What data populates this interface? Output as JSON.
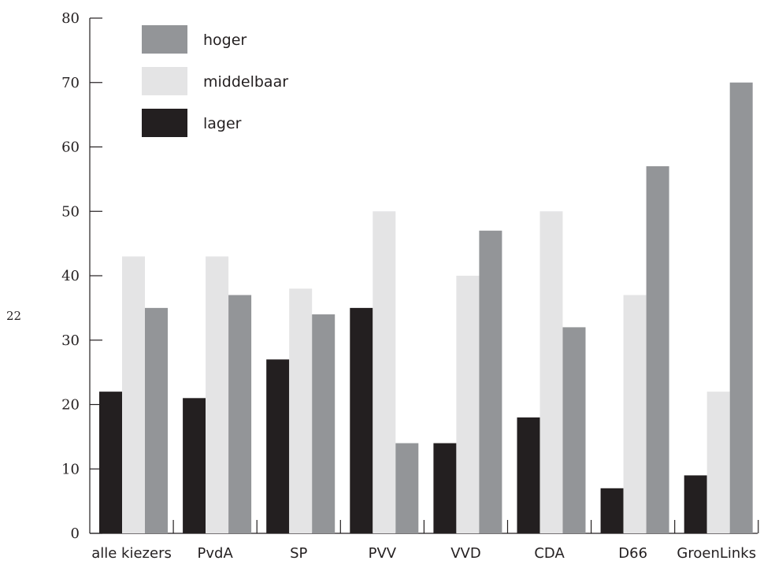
{
  "page_number": "22",
  "chart_data": {
    "type": "bar",
    "title": "",
    "xlabel": "",
    "ylabel": "",
    "ylim": [
      0,
      80
    ],
    "yticks": [
      0,
      10,
      20,
      30,
      40,
      50,
      60,
      70,
      80
    ],
    "categories": [
      "alle kiezers",
      "PvdA",
      "SP",
      "PVV",
      "VVD",
      "CDA",
      "D66",
      "GroenLinks"
    ],
    "series": [
      {
        "name": "lager",
        "color": "#231f20",
        "values": [
          22,
          21,
          27,
          35,
          14,
          18,
          7,
          9
        ]
      },
      {
        "name": "middelbaar",
        "color": "#e4e4e5",
        "values": [
          43,
          43,
          38,
          50,
          40,
          50,
          37,
          22
        ]
      },
      {
        "name": "hoger",
        "color": "#939598",
        "values": [
          35,
          37,
          34,
          14,
          47,
          32,
          57,
          70
        ]
      }
    ],
    "legend": {
      "placement": "top-left",
      "order": [
        "hoger",
        "middelbaar",
        "lager"
      ]
    },
    "grid": false
  }
}
